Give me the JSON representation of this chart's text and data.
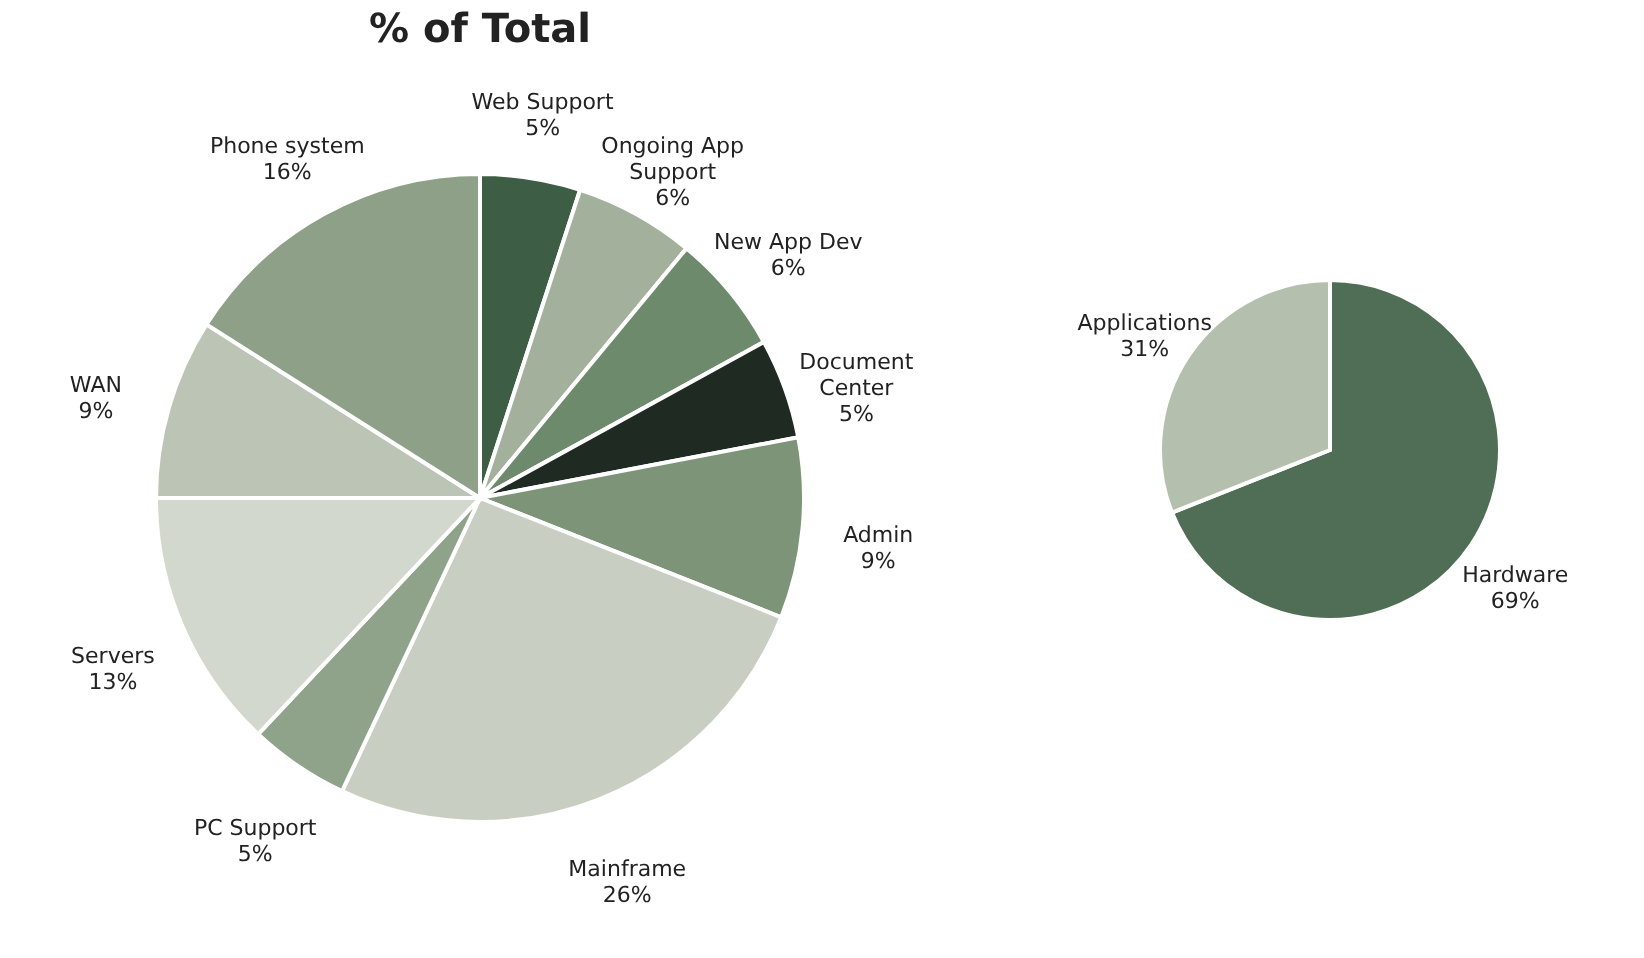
{
  "chart_data": [
    {
      "type": "pie",
      "title": "% of Total",
      "categories": [
        "Web Support",
        "Ongoing App Support",
        "New App Dev",
        "Document Center",
        "Admin",
        "Mainframe",
        "PC Support",
        "Servers",
        "WAN",
        "Phone system"
      ],
      "values": [
        5,
        6,
        6,
        5,
        9,
        26,
        5,
        13,
        9,
        16
      ],
      "value_labels": [
        "5%",
        "6%",
        "6%",
        "5%",
        "9%",
        "26%",
        "5%",
        "13%",
        "9%",
        "16%"
      ],
      "colors": [
        "#3d5e45",
        "#a3b09c",
        "#6e8a6c",
        "#1e2a22",
        "#7d9478",
        "#c8cfc2",
        "#8fa38a",
        "#d2d8cd",
        "#bcc5b5",
        "#8fa088"
      ]
    },
    {
      "type": "pie",
      "categories": [
        "Hardware",
        "Applications"
      ],
      "values": [
        69,
        31
      ],
      "value_labels": [
        "69%",
        "31%"
      ],
      "colors": [
        "#4f6e55",
        "#b5bfae"
      ]
    }
  ]
}
